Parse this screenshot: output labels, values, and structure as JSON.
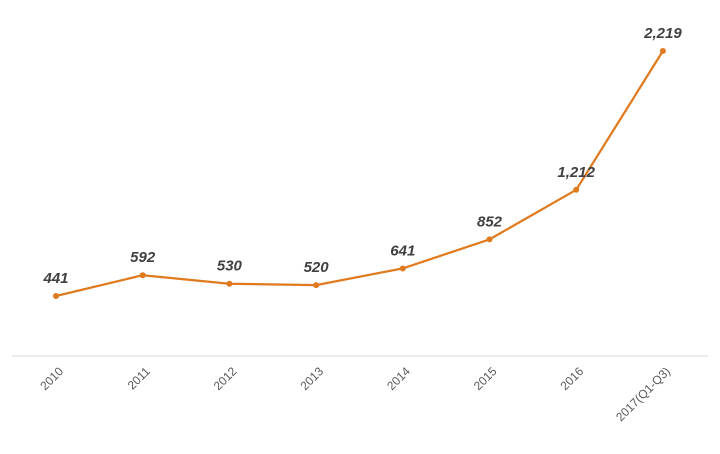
{
  "chart_data": {
    "type": "line",
    "title": "",
    "xlabel": "",
    "ylabel": "",
    "categories": [
      "2010",
      "2011",
      "2012",
      "2013",
      "2014",
      "2015",
      "2016",
      "2017(Q1-Q3)"
    ],
    "series": [
      {
        "values": [
          441,
          592,
          530,
          520,
          641,
          852,
          1212,
          2219
        ],
        "value_labels": [
          "441",
          "592",
          "530",
          "520",
          "641",
          "852",
          "1,212",
          "2,219"
        ],
        "color": "#E07A1F"
      }
    ],
    "grid": false,
    "legend": "none"
  }
}
